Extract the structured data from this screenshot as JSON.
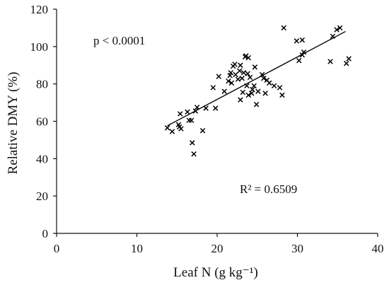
{
  "chart_data": {
    "type": "scatter",
    "title": "",
    "xlabel": "Leaf N (g kg⁻¹)",
    "ylabel": "Relative DMY (%)",
    "xlim": [
      0,
      40
    ],
    "ylim": [
      0,
      120
    ],
    "x_ticks": [
      0,
      10,
      20,
      30,
      40
    ],
    "y_ticks": [
      0,
      20,
      40,
      60,
      80,
      100,
      120
    ],
    "x_tick_labels": [
      "0",
      "10",
      "20",
      "30",
      "40"
    ],
    "y_tick_labels": [
      "0",
      "20",
      "40",
      "60",
      "80",
      "100",
      "120"
    ],
    "grid": false,
    "legend": "none",
    "marker": "x",
    "marker_color": "#000000",
    "annotations": {
      "p_value": "p < 0.0001",
      "r_squared": "R² = 0.6509"
    },
    "trendline": {
      "type": "linear",
      "x": [
        13.8,
        36.0
      ],
      "y": [
        57.6,
        108.1
      ]
    },
    "points": [
      [
        13.8,
        56.5
      ],
      [
        14.4,
        54.5
      ],
      [
        15.2,
        58.2
      ],
      [
        15.3,
        57.0
      ],
      [
        15.4,
        64.0
      ],
      [
        15.5,
        56.0
      ],
      [
        16.3,
        65.0
      ],
      [
        16.5,
        60.5
      ],
      [
        16.8,
        60.5
      ],
      [
        16.9,
        48.5
      ],
      [
        17.1,
        42.5
      ],
      [
        17.5,
        67.5
      ],
      [
        17.3,
        65.5
      ],
      [
        18.2,
        55.0
      ],
      [
        18.6,
        67.0
      ],
      [
        19.5,
        78.0
      ],
      [
        19.8,
        67.0
      ],
      [
        20.2,
        84.0
      ],
      [
        20.9,
        76.0
      ],
      [
        21.4,
        81.5
      ],
      [
        21.6,
        84.5
      ],
      [
        21.7,
        86.0
      ],
      [
        21.8,
        80.5
      ],
      [
        22.0,
        89.5
      ],
      [
        22.2,
        90.5
      ],
      [
        22.3,
        85.0
      ],
      [
        22.6,
        82.5
      ],
      [
        22.8,
        87.0
      ],
      [
        22.9,
        90.0
      ],
      [
        22.9,
        71.5
      ],
      [
        23.1,
        83.0
      ],
      [
        23.2,
        75.5
      ],
      [
        23.3,
        86.0
      ],
      [
        23.5,
        94.5
      ],
      [
        23.6,
        95.0
      ],
      [
        23.7,
        79.0
      ],
      [
        23.8,
        85.5
      ],
      [
        23.9,
        94.0
      ],
      [
        23.9,
        74.0
      ],
      [
        24.1,
        83.5
      ],
      [
        24.3,
        75.0
      ],
      [
        24.4,
        77.0
      ],
      [
        24.6,
        79.0
      ],
      [
        24.7,
        89.0
      ],
      [
        24.9,
        69.0
      ],
      [
        25.1,
        76.0
      ],
      [
        25.6,
        85.0
      ],
      [
        25.8,
        83.0
      ],
      [
        26.0,
        75.0
      ],
      [
        26.2,
        82.0
      ],
      [
        26.5,
        80.5
      ],
      [
        27.1,
        79.0
      ],
      [
        27.8,
        78.0
      ],
      [
        28.1,
        74.0
      ],
      [
        28.3,
        110.0
      ],
      [
        29.9,
        103.0
      ],
      [
        30.2,
        92.5
      ],
      [
        30.6,
        95.5
      ],
      [
        30.8,
        97.0
      ],
      [
        30.6,
        103.5
      ],
      [
        34.1,
        92.0
      ],
      [
        34.4,
        105.5
      ],
      [
        34.9,
        109.0
      ],
      [
        35.3,
        110.0
      ],
      [
        36.1,
        91.0
      ],
      [
        36.4,
        93.5
      ]
    ]
  }
}
